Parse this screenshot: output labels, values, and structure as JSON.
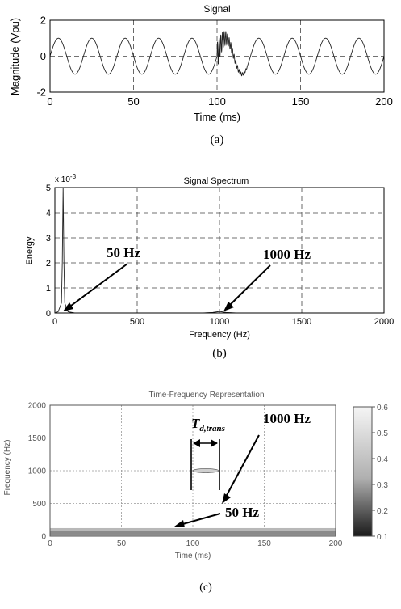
{
  "chart_data": [
    {
      "type": "line",
      "title": "Signal",
      "xlabel": "Time (ms)",
      "ylabel": "Magnitude (Vpu)",
      "xlim": [
        0,
        200
      ],
      "ylim": [
        -2,
        2
      ],
      "xticks": [
        "0",
        "50",
        "100",
        "150",
        "200"
      ],
      "yticks": [
        "2",
        "0",
        "-2"
      ],
      "grid": "dashed",
      "signal": {
        "fundamental_hz": 50,
        "amplitude": 1.0,
        "transient": {
          "start_ms": 100,
          "end_ms": 118,
          "frequency_hz": 1000,
          "peak_amplitude": 0.75
        }
      },
      "caption": "(a)"
    },
    {
      "type": "line",
      "title": "Signal Spectrum",
      "xlabel": "Frequency (Hz)",
      "ylabel": "Energy",
      "xlim": [
        0,
        2000
      ],
      "ylim": [
        0,
        5
      ],
      "exponent_label": "x 10",
      "exponent_power": "-3",
      "xticks": [
        "0",
        "500",
        "1000",
        "1500",
        "2000"
      ],
      "yticks": [
        "5",
        "4",
        "3",
        "2",
        "1",
        "0"
      ],
      "grid": "dashed",
      "x": [
        0,
        20,
        40,
        45,
        50,
        55,
        60,
        80,
        120,
        200,
        900,
        960,
        1000,
        1040,
        1100,
        2000
      ],
      "y": [
        0,
        0.05,
        0.4,
        2.0,
        5.0,
        2.0,
        0.4,
        0.05,
        0.0,
        0.0,
        0.0,
        0.02,
        0.06,
        0.02,
        0.0,
        0.0
      ],
      "annotations": [
        {
          "text": "50 Hz",
          "x": 50,
          "y": 0.05
        },
        {
          "text": "1000 Hz",
          "x": 1000,
          "y": 0.06
        }
      ],
      "caption": "(b)"
    },
    {
      "type": "heatmap",
      "title": "Time-Frequency Representation",
      "xlabel": "Time (ms)",
      "ylabel": "Frequency (Hz)",
      "xlim": [
        0,
        200
      ],
      "ylim": [
        0,
        2000
      ],
      "xticks": [
        "0",
        "50",
        "100",
        "150",
        "200"
      ],
      "yticks": [
        "2000",
        "1500",
        "1000",
        "500",
        "0"
      ],
      "grid": "dotted",
      "colorbar_range": [
        0.1,
        0.6
      ],
      "colorbar_ticks": [
        "0.6",
        "0.5",
        "0.4",
        "0.3",
        "0.2",
        "0.1"
      ],
      "features": [
        {
          "label": "50 Hz band",
          "frequency_hz": 50,
          "time_ms": [
            0,
            200
          ]
        },
        {
          "label": "1000 Hz burst",
          "frequency_hz": 1000,
          "time_ms": [
            100,
            118
          ]
        }
      ],
      "annotations": [
        {
          "text": "1000 Hz"
        },
        {
          "text": "50 Hz"
        }
      ],
      "duration_label": {
        "T": "T",
        "sub": "d,trans",
        "start_ms": 100,
        "end_ms": 118
      },
      "caption": "(c)"
    }
  ]
}
